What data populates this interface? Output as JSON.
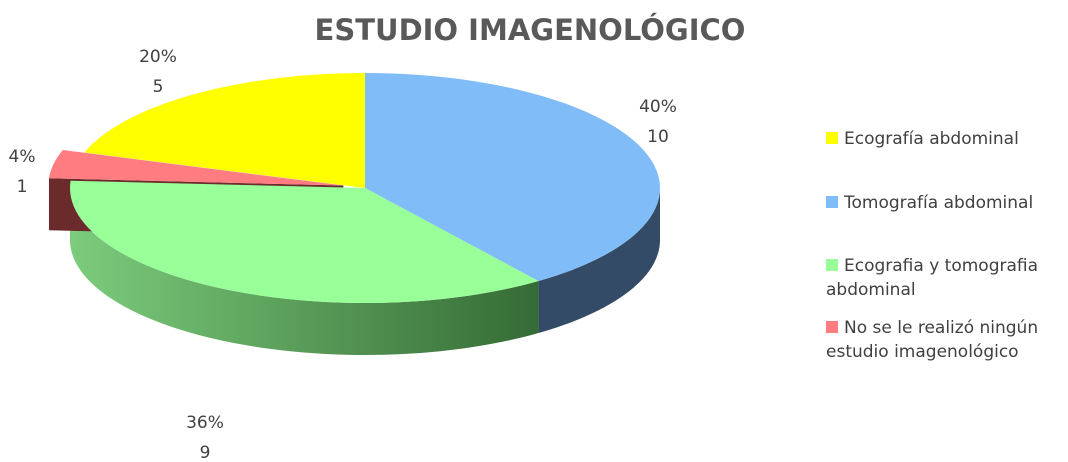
{
  "chart_data": {
    "type": "pie",
    "title": "ESTUDIO IMAGENOLÓGICO",
    "categories": [
      "Ecografía abdominal",
      "Tomografía abdominal",
      "Ecografia y tomografia abdominal",
      "No se le realizó ningún estudio imagenológico"
    ],
    "values": [
      20,
      40,
      36,
      4
    ],
    "value_labels": [
      "20%",
      "40%",
      "36%",
      "4%"
    ],
    "counts": [
      5,
      10,
      9,
      1
    ],
    "colors": [
      "#ffff00",
      "#80bcf7",
      "#99ff99",
      "#ff7c80"
    ],
    "legend": "right"
  }
}
